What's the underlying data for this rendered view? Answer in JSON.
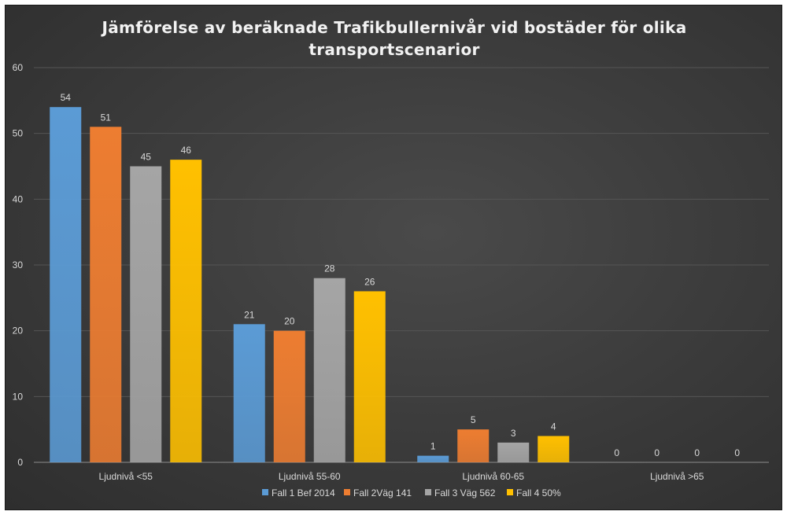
{
  "chart_data": {
    "type": "bar",
    "title_lines": [
      "Jämförelse av beräknade Trafikbullernivår vid bostäder för olika",
      "transportscenarior"
    ],
    "categories": [
      "Ljudnivå <55",
      "Ljudnivå 55-60",
      "Ljudnivå 60-65",
      "Ljudnivå >65"
    ],
    "series": [
      {
        "name": "Fall 1 Bef 2014",
        "values": [
          54,
          21,
          1,
          0
        ],
        "color": "#5b9bd5"
      },
      {
        "name": "Fall 2Väg 141",
        "values": [
          51,
          20,
          5,
          0
        ],
        "color": "#ed7d31"
      },
      {
        "name": "Fall 3 Väg 562",
        "values": [
          45,
          28,
          3,
          0
        ],
        "color": "#a5a5a5"
      },
      {
        "name": "Fall 4 50%",
        "values": [
          46,
          26,
          4,
          0
        ],
        "color": "#ffc000"
      }
    ],
    "ylim": [
      0,
      60
    ],
    "yticks": [
      0,
      10,
      20,
      30,
      40,
      50,
      60
    ],
    "grid": true,
    "legend_position": "bottom",
    "data_labels": true
  }
}
